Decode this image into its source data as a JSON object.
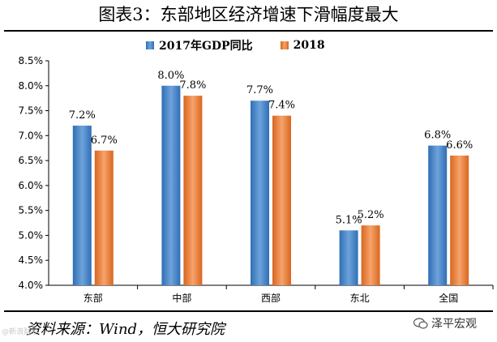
{
  "title": "图表3：东部地区经济增速下滑幅度最大",
  "source": "资料来源：Wind，恒大研究院",
  "watermark": "泽平宏观",
  "watermark_left": "@新浪财经",
  "colors": {
    "series1": "#4f8bc9",
    "series2": "#ee8a47"
  },
  "chart_data": {
    "type": "bar",
    "categories": [
      "东部",
      "中部",
      "西部",
      "东北",
      "全国"
    ],
    "series": [
      {
        "name": "2017年GDP同比",
        "values": [
          7.2,
          8.0,
          7.7,
          5.1,
          6.8
        ],
        "labels": [
          "7.2%",
          "8.0%",
          "7.7%",
          "5.1%",
          "6.8%"
        ]
      },
      {
        "name": "2018",
        "values": [
          6.7,
          7.8,
          7.4,
          5.2,
          6.6
        ],
        "labels": [
          "6.7%",
          "7.8%",
          "7.4%",
          "5.2%",
          "6.6%"
        ]
      }
    ],
    "ylim": [
      4.0,
      8.5
    ],
    "yticks": [
      "4.0%",
      "4.5%",
      "5.0%",
      "5.5%",
      "6.0%",
      "6.5%",
      "7.0%",
      "7.5%",
      "8.0%",
      "8.5%"
    ],
    "legend": "top-center",
    "grid": false
  }
}
